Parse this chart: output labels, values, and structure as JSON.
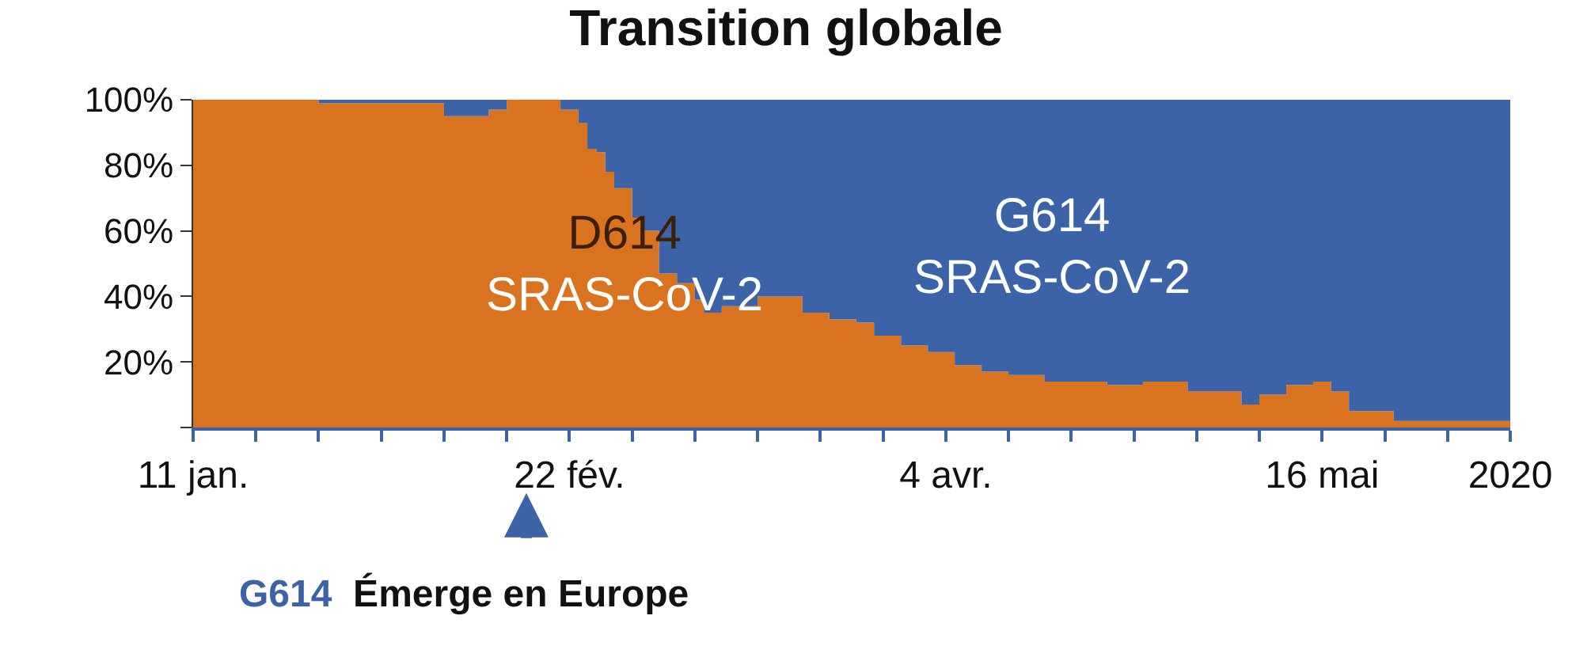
{
  "chart_data": {
    "type": "area",
    "title": "Transition globale",
    "stacked": true,
    "legend": false,
    "x": [
      "2020-01-11",
      "2020-01-24",
      "2020-01-25",
      "2020-02-08",
      "2020-02-13",
      "2020-02-15",
      "2020-02-20",
      "2020-02-21",
      "2020-02-23",
      "2020-02-24",
      "2020-02-25",
      "2020-02-26",
      "2020-02-27",
      "2020-02-28",
      "2020-02-29",
      "2020-03-01",
      "2020-03-03",
      "2020-03-05",
      "2020-03-07",
      "2020-03-08",
      "2020-03-10",
      "2020-03-12",
      "2020-03-14",
      "2020-03-16",
      "2020-03-19",
      "2020-03-22",
      "2020-03-25",
      "2020-03-27",
      "2020-03-30",
      "2020-04-02",
      "2020-04-05",
      "2020-04-08",
      "2020-04-11",
      "2020-04-15",
      "2020-04-17",
      "2020-04-22",
      "2020-04-26",
      "2020-05-01",
      "2020-05-07",
      "2020-05-09",
      "2020-05-12",
      "2020-05-15",
      "2020-05-17",
      "2020-05-19",
      "2020-05-24",
      "2020-05-30",
      "2020-06-02",
      "2020-06-04",
      "2020-06-06"
    ],
    "series": [
      {
        "name": "D614 SRAS-CoV-2",
        "color": "#d9731f",
        "values": [
          100,
          100,
          99,
          95,
          97,
          100,
          100,
          97,
          93,
          85,
          84,
          78,
          73,
          73,
          64,
          60,
          47,
          44,
          39,
          35,
          37,
          37,
          40,
          40,
          35,
          33,
          32,
          28,
          25,
          23,
          19,
          17,
          16,
          14,
          14,
          13,
          14,
          11,
          7,
          10,
          13,
          14,
          11,
          5,
          2,
          2,
          2,
          2,
          5
        ]
      },
      {
        "name": "G614 SRAS-CoV-2",
        "color": "#3c63a8",
        "values": [
          0,
          0,
          1,
          5,
          3,
          0,
          0,
          3,
          7,
          15,
          16,
          22,
          27,
          27,
          36,
          40,
          53,
          56,
          61,
          65,
          63,
          63,
          60,
          60,
          65,
          67,
          68,
          72,
          75,
          77,
          81,
          83,
          84,
          86,
          86,
          87,
          86,
          89,
          93,
          90,
          87,
          86,
          89,
          95,
          98,
          98,
          98,
          98,
          95
        ]
      }
    ],
    "xlim": [
      "2020-01-11",
      "2020-06-06"
    ],
    "xticks": [
      {
        "value": "2020-01-11",
        "label": "11 jan."
      },
      {
        "value": "2020-01-18",
        "label": null
      },
      {
        "value": "2020-01-25",
        "label": null
      },
      {
        "value": "2020-02-01",
        "label": null
      },
      {
        "value": "2020-02-08",
        "label": null
      },
      {
        "value": "2020-02-15",
        "label": null
      },
      {
        "value": "2020-02-22",
        "label": "22 fév."
      },
      {
        "value": "2020-02-29",
        "label": null
      },
      {
        "value": "2020-03-07",
        "label": null
      },
      {
        "value": "2020-03-14",
        "label": null
      },
      {
        "value": "2020-03-21",
        "label": null
      },
      {
        "value": "2020-03-28",
        "label": null
      },
      {
        "value": "2020-04-04",
        "label": "4 avr."
      },
      {
        "value": "2020-04-11",
        "label": null
      },
      {
        "value": "2020-04-18",
        "label": null
      },
      {
        "value": "2020-04-25",
        "label": null
      },
      {
        "value": "2020-05-02",
        "label": null
      },
      {
        "value": "2020-05-09",
        "label": null
      },
      {
        "value": "2020-05-16",
        "label": "16 mai"
      },
      {
        "value": "2020-05-23",
        "label": null
      },
      {
        "value": "2020-05-30",
        "label": null
      },
      {
        "value": "2020-06-06",
        "label": "2020"
      }
    ],
    "ylim": [
      0,
      100
    ],
    "yticks": [
      {
        "value": 0,
        "label": null
      },
      {
        "value": 20,
        "label": "20%"
      },
      {
        "value": 40,
        "label": "40%"
      },
      {
        "value": 60,
        "label": "60%"
      },
      {
        "value": 80,
        "label": "80%"
      },
      {
        "value": 100,
        "label": "100%"
      }
    ],
    "annotations": [
      "G614 Émerge en Europe"
    ]
  }
}
